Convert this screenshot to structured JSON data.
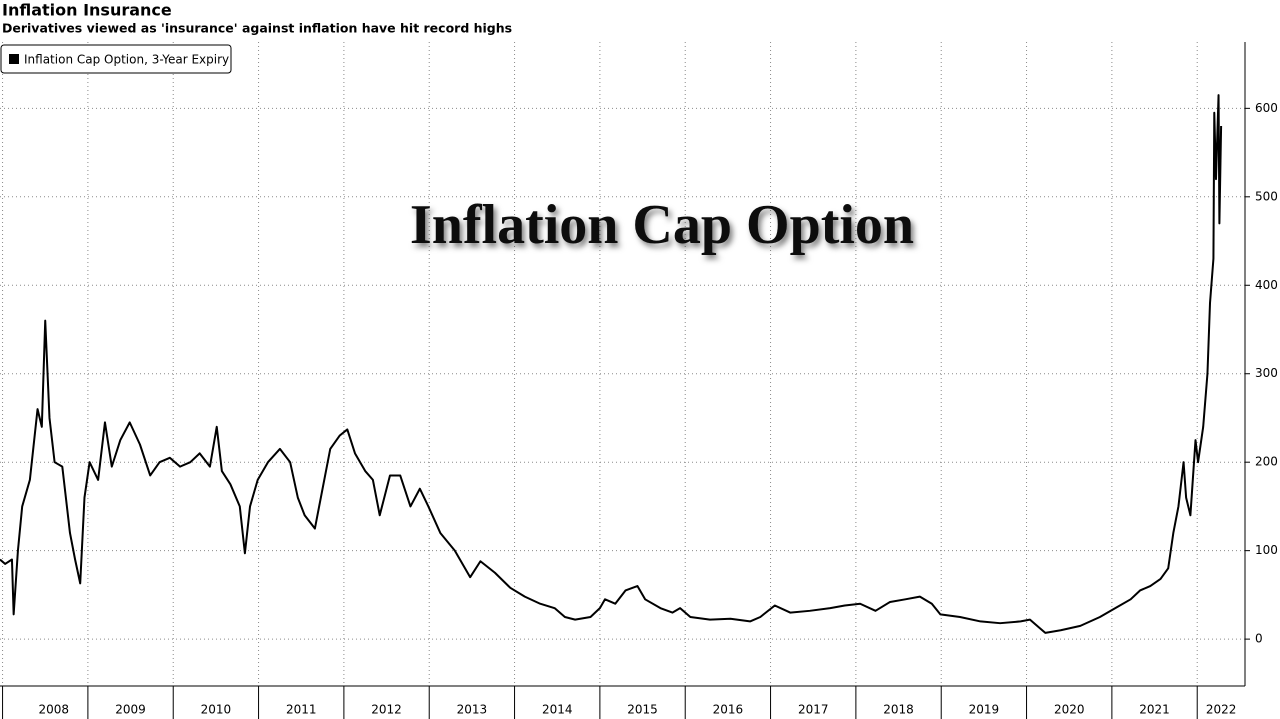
{
  "chart_data": {
    "type": "line",
    "title": "Inflation Insurance",
    "subtitle": "Derivatives viewed as 'insurance' against inflation have hit record highs",
    "annotation": "Inflation Cap Option",
    "series": [
      {
        "name": "Inflation Cap Option, 3-Year Expiry",
        "color": "#000000",
        "x": [
          2007.97,
          2008.03,
          2008.11,
          2008.13,
          2008.18,
          2008.23,
          2008.32,
          2008.41,
          2008.46,
          2008.5,
          2008.55,
          2008.61,
          2008.7,
          2008.79,
          2008.85,
          2008.91,
          2008.96,
          2009.02,
          2009.12,
          2009.2,
          2009.28,
          2009.38,
          2009.49,
          2009.61,
          2009.73,
          2009.84,
          2009.96,
          2010.08,
          2010.2,
          2010.31,
          2010.43,
          2010.51,
          2010.57,
          2010.67,
          2010.78,
          2010.84,
          2010.9,
          2010.99,
          2011.11,
          2011.25,
          2011.37,
          2011.46,
          2011.54,
          2011.66,
          2011.74,
          2011.84,
          2011.95,
          2012.04,
          2012.13,
          2012.25,
          2012.34,
          2012.42,
          2012.54,
          2012.66,
          2012.78,
          2012.89,
          2012.99,
          2013.13,
          2013.3,
          2013.48,
          2013.6,
          2013.77,
          2013.95,
          2014.12,
          2014.3,
          2014.47,
          2014.59,
          2014.71,
          2014.89,
          2015.0,
          2015.06,
          2015.18,
          2015.3,
          2015.44,
          2015.53,
          2015.71,
          2015.85,
          2015.94,
          2016.06,
          2016.29,
          2016.53,
          2016.76,
          2016.88,
          2017.05,
          2017.23,
          2017.46,
          2017.7,
          2017.87,
          2018.05,
          2018.23,
          2018.4,
          2018.58,
          2018.75,
          2018.89,
          2018.99,
          2019.22,
          2019.46,
          2019.69,
          2019.93,
          2020.04,
          2020.16,
          2020.22,
          2020.4,
          2020.63,
          2020.86,
          2021.04,
          2021.22,
          2021.33,
          2021.45,
          2021.57,
          2021.66,
          2021.72,
          2021.78,
          2021.84,
          2021.87,
          2021.92,
          2021.98,
          2022.01,
          2022.07,
          2022.12,
          2022.15,
          2022.19,
          2022.2,
          2022.22,
          2022.25,
          2022.26,
          2022.28
        ],
        "values": [
          90,
          85,
          90,
          28,
          100,
          150,
          180,
          260,
          240,
          360,
          250,
          200,
          195,
          120,
          90,
          63,
          160,
          200,
          180,
          245,
          195,
          225,
          245,
          220,
          185,
          200,
          205,
          195,
          200,
          210,
          195,
          240,
          190,
          175,
          150,
          97,
          150,
          180,
          200,
          215,
          200,
          160,
          140,
          125,
          165,
          215,
          230,
          237,
          210,
          190,
          180,
          140,
          185,
          185,
          150,
          170,
          150,
          120,
          100,
          70,
          88,
          75,
          58,
          48,
          40,
          35,
          25,
          22,
          25,
          35,
          45,
          40,
          55,
          60,
          45,
          35,
          30,
          35,
          25,
          22,
          23,
          20,
          25,
          38,
          30,
          32,
          35,
          38,
          40,
          32,
          42,
          45,
          48,
          40,
          28,
          25,
          20,
          18,
          20,
          22,
          12,
          7,
          10,
          15,
          25,
          35,
          45,
          55,
          60,
          68,
          80,
          120,
          150,
          200,
          160,
          140,
          225,
          200,
          240,
          300,
          380,
          430,
          595,
          520,
          615,
          470,
          580
        ]
      }
    ],
    "xlim": [
      2007.97,
      2022.56
    ],
    "xticks": [
      {
        "value": 2008.6,
        "label": "2008"
      },
      {
        "value": 2009.5,
        "label": "2009"
      },
      {
        "value": 2010.5,
        "label": "2010"
      },
      {
        "value": 2011.5,
        "label": "2011"
      },
      {
        "value": 2012.5,
        "label": "2012"
      },
      {
        "value": 2013.5,
        "label": "2013"
      },
      {
        "value": 2014.5,
        "label": "2014"
      },
      {
        "value": 2015.5,
        "label": "2015"
      },
      {
        "value": 2016.5,
        "label": "2016"
      },
      {
        "value": 2017.5,
        "label": "2017"
      },
      {
        "value": 2018.5,
        "label": "2018"
      },
      {
        "value": 2019.5,
        "label": "2019"
      },
      {
        "value": 2020.5,
        "label": "2020"
      },
      {
        "value": 2021.5,
        "label": "2021"
      },
      {
        "value": 2022.28,
        "label": "2022"
      }
    ],
    "ylim": [
      -53,
      675
    ],
    "yticks": [
      0,
      100,
      200,
      300,
      400,
      500,
      600
    ],
    "grid": true,
    "legend": "top-left"
  }
}
